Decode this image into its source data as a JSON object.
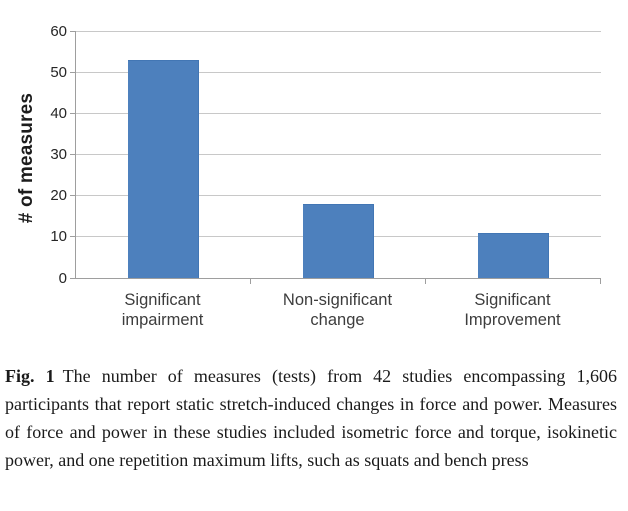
{
  "figure": {
    "caption": {
      "label": "Fig. 1",
      "text": "The number of measures (tests) from 42 studies encompassing 1,606 participants that report static stretch-induced changes in force and power. Measures of force and power in these studies included isometric force and torque, isokinetic power, and one repetition maximum lifts, such as squats and bench press"
    }
  },
  "chart_data": {
    "type": "bar",
    "categories": [
      "Significant impairment",
      "Non-significant change",
      "Significant Improvement"
    ],
    "values": [
      53,
      18,
      11
    ],
    "title": "",
    "xlabel": "",
    "ylabel": "# of measures",
    "ylim": [
      0,
      60
    ],
    "yticks": [
      0,
      10,
      20,
      30,
      40,
      50,
      60
    ],
    "grid": true,
    "legend": "none",
    "bar_color": "#4d80bd",
    "bar_border_color": "#4276b4",
    "gridline_color": "#c8c8c8",
    "axis_color": "#9e9e9e"
  }
}
